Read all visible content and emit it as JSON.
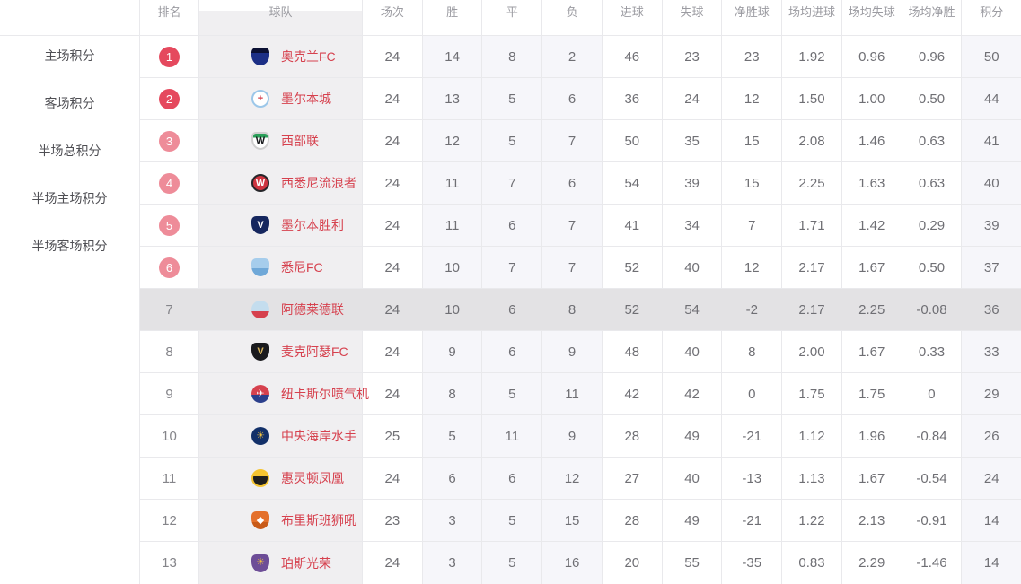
{
  "colors": {
    "team_name": "#d6414e",
    "badge_top2": "#e5495e",
    "badge_3to6": "#ee8c99",
    "highlight_row": "#e3e2e4",
    "team_col_bg": "#f0eff1",
    "tint_col_bg": "#f6f6fa",
    "stat_text": "#6f6f74",
    "rank_text": "#85858a",
    "header_text": "#9b9ba1",
    "sidebar_text": "#4f4f54",
    "border": "#e9e9ec"
  },
  "sidebar": {
    "items": [
      {
        "key": "home-points",
        "label": "主场积分"
      },
      {
        "key": "away-points",
        "label": "客场积分"
      },
      {
        "key": "half-total-points",
        "label": "半场总积分"
      },
      {
        "key": "half-home-points",
        "label": "半场主场积分"
      },
      {
        "key": "half-away-points",
        "label": "半场客场积分"
      }
    ]
  },
  "table": {
    "columns": [
      {
        "key": "rank",
        "label": "排名"
      },
      {
        "key": "team",
        "label": "球队"
      },
      {
        "key": "matches",
        "label": "场次"
      },
      {
        "key": "win",
        "label": "胜"
      },
      {
        "key": "draw",
        "label": "平"
      },
      {
        "key": "loss",
        "label": "负"
      },
      {
        "key": "goals-for",
        "label": "进球"
      },
      {
        "key": "goals-against",
        "label": "失球"
      },
      {
        "key": "goal-diff",
        "label": "净胜球"
      },
      {
        "key": "avg-goals-for",
        "label": "场均进球"
      },
      {
        "key": "avg-goals-against",
        "label": "场均失球"
      },
      {
        "key": "avg-goal-diff",
        "label": "场均净胜"
      },
      {
        "key": "points",
        "label": "积分"
      }
    ],
    "tint_stat_indices": [
      1,
      2,
      3,
      10
    ],
    "rows": [
      {
        "key": "auckland-fc",
        "rank": "1",
        "badge": "strong",
        "team": "奥克兰FC",
        "highlighted": false,
        "logo": {
          "shape": "shield",
          "c1": "#0b1033",
          "split": 30,
          "c2": "#1c2f86",
          "border": null,
          "letter": "",
          "letterColor": ""
        },
        "stats": [
          "24",
          "14",
          "8",
          "2",
          "46",
          "23",
          "23",
          "1.92",
          "0.96",
          "0.96",
          "50"
        ]
      },
      {
        "key": "melbourne-city",
        "rank": "2",
        "badge": "strong",
        "team": "墨尔本城",
        "highlighted": false,
        "logo": {
          "shape": "circle",
          "c1": "#ffffff",
          "split": 50,
          "c2": "#ffffff",
          "border": "#9cc7e9",
          "letter": "+",
          "letterColor": "#d6414e"
        },
        "stats": [
          "24",
          "13",
          "5",
          "6",
          "36",
          "24",
          "12",
          "1.50",
          "1.00",
          "0.50",
          "44"
        ]
      },
      {
        "key": "western-united",
        "rank": "3",
        "badge": "light",
        "team": "西部联",
        "highlighted": false,
        "logo": {
          "shape": "shield",
          "c1": "#2aa05a",
          "split": 28,
          "c2": "#ffffff",
          "border": "#cfcfcf",
          "letter": "W",
          "letterColor": "#17191c"
        },
        "stats": [
          "24",
          "12",
          "5",
          "7",
          "50",
          "35",
          "15",
          "2.08",
          "1.46",
          "0.63",
          "41"
        ]
      },
      {
        "key": "western-sydney-wanderers",
        "rank": "4",
        "badge": "light",
        "team": "西悉尼流浪者",
        "highlighted": false,
        "logo": {
          "shape": "circle",
          "c1": "#cf3440",
          "split": 50,
          "c2": "#cf3440",
          "border": "#26262a",
          "letter": "W",
          "letterColor": "#ffffff"
        },
        "stats": [
          "24",
          "11",
          "7",
          "6",
          "54",
          "39",
          "15",
          "2.25",
          "1.63",
          "0.63",
          "40"
        ]
      },
      {
        "key": "melbourne-victory",
        "rank": "5",
        "badge": "light",
        "team": "墨尔本胜利",
        "highlighted": false,
        "logo": {
          "shape": "shield",
          "c1": "#15265e",
          "split": 50,
          "c2": "#15265e",
          "border": null,
          "letter": "V",
          "letterColor": "#ffffff"
        },
        "stats": [
          "24",
          "11",
          "6",
          "7",
          "41",
          "34",
          "7",
          "1.71",
          "1.42",
          "0.29",
          "39"
        ]
      },
      {
        "key": "sydney-fc",
        "rank": "6",
        "badge": "light",
        "team": "悉尼FC",
        "highlighted": false,
        "logo": {
          "shape": "shield",
          "c1": "#a6cdec",
          "split": 55,
          "c2": "#6fa8d8",
          "border": null,
          "letter": "",
          "letterColor": ""
        },
        "stats": [
          "24",
          "10",
          "7",
          "7",
          "52",
          "40",
          "12",
          "2.17",
          "1.67",
          "0.50",
          "37"
        ]
      },
      {
        "key": "adelaide-united",
        "rank": "7",
        "badge": null,
        "team": "阿德莱德联",
        "highlighted": true,
        "logo": {
          "shape": "circle",
          "c1": "#c4ddee",
          "split": 60,
          "c2": "#d6414e",
          "border": null,
          "letter": "",
          "letterColor": ""
        },
        "stats": [
          "24",
          "10",
          "6",
          "8",
          "52",
          "54",
          "-2",
          "2.17",
          "2.25",
          "-0.08",
          "36"
        ]
      },
      {
        "key": "macarthur-fc",
        "rank": "8",
        "badge": null,
        "team": "麦克阿瑟FC",
        "highlighted": false,
        "logo": {
          "shape": "shield",
          "c1": "#1a1a1e",
          "split": 50,
          "c2": "#1a1a1e",
          "border": null,
          "letter": "V",
          "letterColor": "#d8b45e"
        },
        "stats": [
          "24",
          "9",
          "6",
          "9",
          "48",
          "40",
          "8",
          "2.00",
          "1.67",
          "0.33",
          "33"
        ]
      },
      {
        "key": "newcastle-jets",
        "rank": "9",
        "badge": null,
        "team": "纽卡斯尔喷气机",
        "highlighted": false,
        "logo": {
          "shape": "circle",
          "c1": "#d6414e",
          "split": 55,
          "c2": "#2b3f8c",
          "border": null,
          "letter": "✈",
          "letterColor": "#ffffff"
        },
        "stats": [
          "24",
          "8",
          "5",
          "11",
          "42",
          "42",
          "0",
          "1.75",
          "1.75",
          "0",
          "29"
        ]
      },
      {
        "key": "central-coast-mariners",
        "rank": "10",
        "badge": null,
        "team": "中央海岸水手",
        "highlighted": false,
        "logo": {
          "shape": "circle",
          "c1": "#123069",
          "split": 50,
          "c2": "#123069",
          "border": null,
          "letter": "☀",
          "letterColor": "#f2c23e"
        },
        "stats": [
          "25",
          "5",
          "11",
          "9",
          "28",
          "49",
          "-21",
          "1.12",
          "1.96",
          "-0.84",
          "26"
        ]
      },
      {
        "key": "wellington-phoenix",
        "rank": "11",
        "badge": null,
        "team": "惠灵顿凤凰",
        "highlighted": false,
        "logo": {
          "shape": "circle",
          "c1": "#f5c431",
          "split": 38,
          "c2": "#1f1f1f",
          "border": "#f5c431",
          "letter": "",
          "letterColor": ""
        },
        "stats": [
          "24",
          "6",
          "6",
          "12",
          "27",
          "40",
          "-13",
          "1.13",
          "1.67",
          "-0.54",
          "24"
        ]
      },
      {
        "key": "brisbane-roar",
        "rank": "12",
        "badge": null,
        "team": "布里斯班狮吼",
        "highlighted": false,
        "logo": {
          "shape": "shield",
          "c1": "#e4702b",
          "split": 60,
          "c2": "#c85a18",
          "border": null,
          "letter": "◆",
          "letterColor": "#ffffff"
        },
        "stats": [
          "23",
          "3",
          "5",
          "15",
          "28",
          "49",
          "-21",
          "1.22",
          "2.13",
          "-0.91",
          "14"
        ]
      },
      {
        "key": "perth-glory",
        "rank": "13",
        "badge": null,
        "team": "珀斯光荣",
        "highlighted": false,
        "logo": {
          "shape": "shield",
          "c1": "#6d4d97",
          "split": 50,
          "c2": "#6d4d97",
          "border": null,
          "letter": "☀",
          "letterColor": "#f2c23e"
        },
        "stats": [
          "24",
          "3",
          "5",
          "16",
          "20",
          "55",
          "-35",
          "0.83",
          "2.29",
          "-1.46",
          "14"
        ]
      }
    ]
  }
}
